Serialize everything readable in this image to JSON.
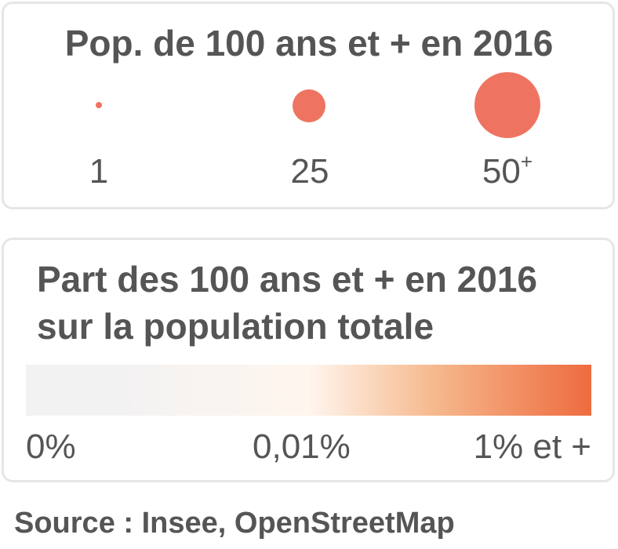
{
  "size_legend": {
    "title": "Pop. de 100 ans et + en 2016",
    "items": [
      {
        "label": "1",
        "superscript": ""
      },
      {
        "label": "25",
        "superscript": ""
      },
      {
        "label": "50",
        "superscript": "+"
      }
    ],
    "bubble_color": "#ee7461"
  },
  "color_legend": {
    "title": "Part des 100 ans et + en 2016 sur la population totale",
    "gradient_stops": [
      "#f2f2f2",
      "#fff6ee",
      "#f6b98e",
      "#ee6b3f"
    ],
    "ticks": [
      "0%",
      "0,01%",
      "1% et +"
    ]
  },
  "source": "Source : Insee, OpenStreetMap"
}
